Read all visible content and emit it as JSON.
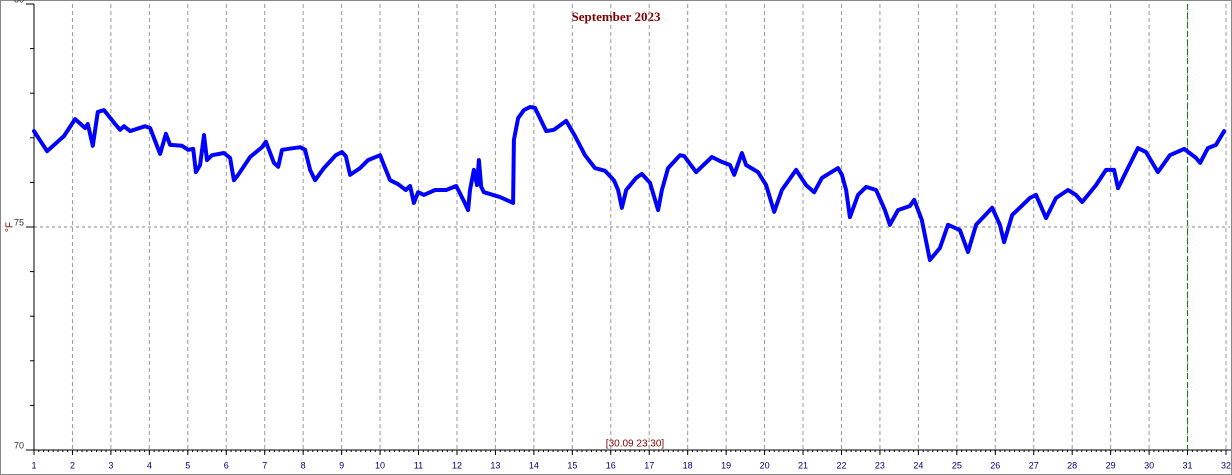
{
  "chart_data": {
    "type": "line",
    "title": "September 2023",
    "ylabel": "°F",
    "annotation": "[30.09 23:30]",
    "xlim": [
      1,
      32
    ],
    "ylim": [
      70,
      80
    ],
    "xticks": [
      1,
      2,
      3,
      4,
      5,
      6,
      7,
      8,
      9,
      10,
      11,
      12,
      13,
      14,
      15,
      16,
      17,
      18,
      19,
      20,
      21,
      22,
      23,
      24,
      25,
      26,
      27,
      28,
      29,
      30,
      31,
      32
    ],
    "yticks": [
      70,
      75,
      80
    ],
    "yminorticks": [
      71,
      72,
      73,
      74,
      76,
      77,
      78,
      79
    ],
    "grid": true,
    "marker_x": 31,
    "marker_color": "#008000",
    "series": [
      {
        "color": "#0000ff",
        "x": [
          1.0,
          1.34,
          1.78,
          2.07,
          2.33,
          2.4,
          2.53,
          2.66,
          2.82,
          3.11,
          3.24,
          3.34,
          3.5,
          3.89,
          4.02,
          4.28,
          4.43,
          4.54,
          4.85,
          5.01,
          5.14,
          5.21,
          5.32,
          5.42,
          5.5,
          5.63,
          5.94,
          6.1,
          6.2,
          6.31,
          6.62,
          6.93,
          7.03,
          7.24,
          7.35,
          7.45,
          7.92,
          8.05,
          8.18,
          8.31,
          8.54,
          8.85,
          9.01,
          9.11,
          9.22,
          9.48,
          9.69,
          10.0,
          10.1,
          10.26,
          10.47,
          10.67,
          10.78,
          10.88,
          10.99,
          11.14,
          11.43,
          11.72,
          11.98,
          12.18,
          12.29,
          12.34,
          12.44,
          12.52,
          12.57,
          12.63,
          12.7,
          13.12,
          13.46,
          13.48,
          13.59,
          13.74,
          13.9,
          14.03,
          14.16,
          14.32,
          14.52,
          14.84,
          15.07,
          15.33,
          15.59,
          15.85,
          16.08,
          16.19,
          16.29,
          16.4,
          16.66,
          16.81,
          17.02,
          17.23,
          17.33,
          17.49,
          17.8,
          17.91,
          18.22,
          18.63,
          18.89,
          19.1,
          19.21,
          19.41,
          19.52,
          19.83,
          20.04,
          20.25,
          20.45,
          20.82,
          21.08,
          21.29,
          21.49,
          21.91,
          22.01,
          22.12,
          22.22,
          22.43,
          22.64,
          22.9,
          23.13,
          23.26,
          23.47,
          23.78,
          23.89,
          24.09,
          24.3,
          24.56,
          24.77,
          25.08,
          25.29,
          25.5,
          25.92,
          26.12,
          26.23,
          26.44,
          26.9,
          27.06,
          27.32,
          27.58,
          27.89,
          28.1,
          28.26,
          28.62,
          28.88,
          29.09,
          29.19,
          29.45,
          29.71,
          29.92,
          30.23,
          30.54,
          30.91,
          31.22,
          31.33,
          31.53,
          31.74,
          31.95
        ],
        "values": [
          77.15,
          76.7,
          77.04,
          77.42,
          77.22,
          77.31,
          76.82,
          77.58,
          77.62,
          77.31,
          77.18,
          77.26,
          77.15,
          77.26,
          77.22,
          76.64,
          77.09,
          76.84,
          76.82,
          76.73,
          76.75,
          76.23,
          76.39,
          77.06,
          76.5,
          76.61,
          76.66,
          76.55,
          76.05,
          76.17,
          76.57,
          76.79,
          76.91,
          76.44,
          76.35,
          76.73,
          76.79,
          76.73,
          76.28,
          76.05,
          76.32,
          76.61,
          76.68,
          76.59,
          76.17,
          76.32,
          76.5,
          76.61,
          76.39,
          76.05,
          75.96,
          75.83,
          75.92,
          75.54,
          75.78,
          75.72,
          75.83,
          75.83,
          75.92,
          75.58,
          75.38,
          75.83,
          76.28,
          75.94,
          76.5,
          75.9,
          75.78,
          75.67,
          75.54,
          76.95,
          77.44,
          77.62,
          77.69,
          77.67,
          77.44,
          77.15,
          77.18,
          77.38,
          77.04,
          76.61,
          76.32,
          76.26,
          76.05,
          75.83,
          75.43,
          75.83,
          76.1,
          76.19,
          75.99,
          75.38,
          75.83,
          76.32,
          76.61,
          76.59,
          76.23,
          76.57,
          76.46,
          76.39,
          76.17,
          76.66,
          76.39,
          76.23,
          75.94,
          75.34,
          75.83,
          76.28,
          75.94,
          75.78,
          76.1,
          76.32,
          76.17,
          75.83,
          75.22,
          75.72,
          75.9,
          75.83,
          75.38,
          75.05,
          75.38,
          75.47,
          75.61,
          75.16,
          74.26,
          74.53,
          75.05,
          74.93,
          74.44,
          75.05,
          75.43,
          75.05,
          74.66,
          75.27,
          75.65,
          75.72,
          75.2,
          75.65,
          75.83,
          75.72,
          75.56,
          75.94,
          76.28,
          76.28,
          75.87,
          76.32,
          76.77,
          76.68,
          76.23,
          76.61,
          76.75,
          76.55,
          76.44,
          76.77,
          76.84,
          77.15
        ]
      }
    ]
  }
}
